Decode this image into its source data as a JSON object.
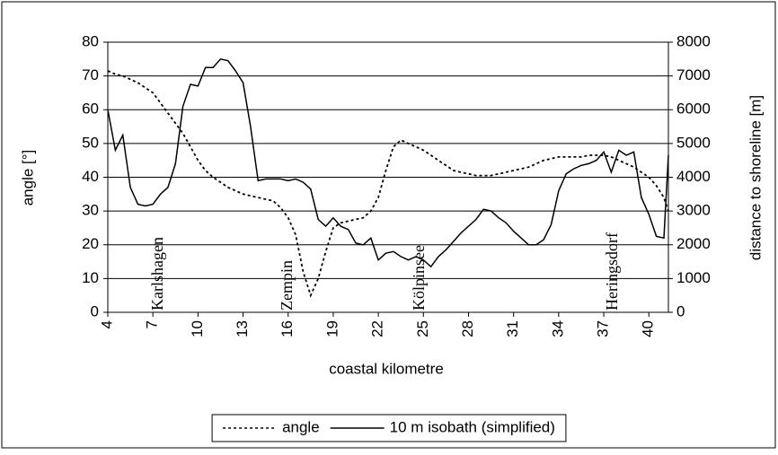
{
  "chart_data": {
    "type": "line",
    "xlabel": "coastal kilometre",
    "ylabel": "angle [°]",
    "y2label": "distance to shoreline [m]",
    "annotations": [
      "Karlshagen",
      "Zempin",
      "Kölpinsee",
      "Heringsdorf"
    ],
    "x": [
      4,
      4.5,
      5,
      5.5,
      6,
      6.5,
      7,
      7.5,
      8,
      8.5,
      9,
      9.5,
      10,
      10.5,
      11,
      11.5,
      12,
      12.5,
      13,
      13.5,
      14,
      14.5,
      15,
      15.5,
      16,
      16.5,
      17,
      17.5,
      18,
      18.5,
      19,
      19.5,
      20,
      20.5,
      21,
      21.5,
      22,
      22.5,
      23,
      23.5,
      24,
      24.5,
      25,
      25.5,
      26,
      26.5,
      27,
      27.5,
      28,
      28.5,
      29,
      29.5,
      30,
      30.5,
      31,
      31.5,
      32,
      32.5,
      33,
      33.5,
      34,
      34.5,
      35,
      35.5,
      36,
      36.5,
      37,
      37.5,
      38,
      38.5,
      39,
      39.5,
      40,
      40.5,
      41,
      41.3
    ],
    "xlim": [
      4,
      41.3
    ],
    "xticks": [
      4,
      7,
      10,
      13,
      16,
      19,
      22,
      25,
      28,
      31,
      34,
      37,
      40
    ],
    "ylim": [
      0,
      80
    ],
    "yticks": [
      0,
      10,
      20,
      30,
      40,
      50,
      60,
      70,
      80
    ],
    "y2lim": [
      0,
      8000
    ],
    "y2ticks": [
      0,
      1000,
      2000,
      3000,
      4000,
      5000,
      6000,
      7000,
      8000
    ],
    "grid": true,
    "legend": "bottom",
    "series": [
      {
        "name": "angle",
        "color": "#000000",
        "dash": "dotted",
        "values": [
          71.5,
          70.5,
          70,
          69,
          68,
          66.5,
          65,
          62,
          59,
          56,
          53,
          49,
          45,
          42,
          40,
          38.5,
          37,
          36,
          35,
          34.5,
          34,
          33.5,
          33,
          31,
          28,
          23,
          12,
          5,
          10,
          18,
          25,
          26.5,
          27,
          27.5,
          28,
          30,
          34,
          42,
          49,
          51,
          50,
          49,
          48,
          46.5,
          45,
          43.5,
          42,
          41.5,
          41,
          40.5,
          40.5,
          40.5,
          41,
          41.5,
          42,
          42.5,
          43,
          44,
          45,
          45.5,
          46,
          46,
          46,
          46,
          46.5,
          46.5,
          46.5,
          46,
          45,
          44,
          43,
          41.5,
          40,
          37.5,
          34,
          30
        ]
      },
      {
        "name": "10 m isobath (simplified)",
        "color": "#000000",
        "dash": "solid",
        "axis": "y2",
        "values": [
          6000,
          4800,
          5250,
          3700,
          3200,
          3150,
          3200,
          3500,
          3700,
          4400,
          6100,
          6750,
          6700,
          7250,
          7250,
          7500,
          7450,
          7150,
          6800,
          5500,
          3900,
          3950,
          3950,
          3950,
          3900,
          3950,
          3850,
          3650,
          2750,
          2550,
          2800,
          2550,
          2450,
          2050,
          2000,
          2200,
          1550,
          1750,
          1800,
          1650,
          1550,
          1650,
          1550,
          1350,
          1650,
          1850,
          2100,
          2350,
          2550,
          2750,
          3050,
          3000,
          2800,
          2650,
          2400,
          2200,
          2000,
          2000,
          2150,
          2600,
          3600,
          4100,
          4250,
          4350,
          4400,
          4500,
          4750,
          4150,
          4800,
          4650,
          4750,
          3400,
          2900,
          2250,
          2200,
          4650
        ]
      }
    ]
  }
}
